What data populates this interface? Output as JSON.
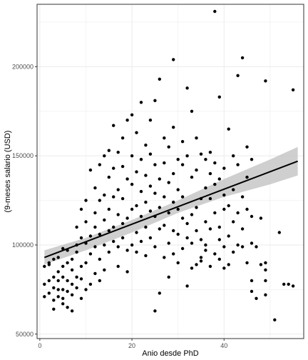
{
  "chart_data": {
    "type": "scatter",
    "title": "",
    "xlabel": "Anio desde PhD",
    "ylabel": "(9-meses salario (USD)",
    "xlim": [
      -0.6,
      57.3
    ],
    "ylim": [
      47500,
      235000
    ],
    "x_ticks": [
      0,
      20,
      40
    ],
    "x_tick_labels": [
      "0",
      "20",
      "40"
    ],
    "y_ticks": [
      50000,
      100000,
      150000,
      200000
    ],
    "y_tick_labels": [
      "50000",
      "100000",
      "150000",
      "200000"
    ],
    "grid": true,
    "legend": "none",
    "colors": {
      "points": "#000000",
      "line": "#000000",
      "band": "#bfbfbf",
      "grid": "#ebebeb",
      "border": "#333333"
    },
    "points": [
      [
        1,
        71000
      ],
      [
        1,
        78000
      ],
      [
        1,
        88000
      ],
      [
        2,
        80000
      ],
      [
        2,
        73000
      ],
      [
        2,
        90000
      ],
      [
        2,
        89000
      ],
      [
        3,
        64000
      ],
      [
        3,
        76000
      ],
      [
        3,
        82000
      ],
      [
        3,
        92000
      ],
      [
        3,
        69000
      ],
      [
        4,
        71000
      ],
      [
        4,
        80000
      ],
      [
        4,
        85000
      ],
      [
        4,
        93000
      ],
      [
        4,
        75000
      ],
      [
        5,
        75000
      ],
      [
        5,
        88000
      ],
      [
        5,
        98000
      ],
      [
        5,
        70000
      ],
      [
        5,
        67000
      ],
      [
        5,
        82000
      ],
      [
        6,
        65000
      ],
      [
        6,
        74000
      ],
      [
        6,
        80000
      ],
      [
        6,
        97000
      ],
      [
        6,
        90000
      ],
      [
        7,
        63000
      ],
      [
        7,
        72000
      ],
      [
        7,
        78000
      ],
      [
        7,
        86000
      ],
      [
        7,
        92000
      ],
      [
        8,
        100000
      ],
      [
        8,
        110000
      ],
      [
        8,
        76000
      ],
      [
        8,
        82000
      ],
      [
        8,
        96000
      ],
      [
        9,
        70000
      ],
      [
        9,
        81000
      ],
      [
        9,
        88000
      ],
      [
        9,
        104000
      ],
      [
        9,
        120000
      ],
      [
        10,
        90000
      ],
      [
        10,
        101000
      ],
      [
        10,
        113000
      ],
      [
        10,
        125000
      ],
      [
        10,
        75000
      ],
      [
        11,
        78000
      ],
      [
        11,
        95000
      ],
      [
        11,
        105000
      ],
      [
        11,
        142000
      ],
      [
        12,
        84000
      ],
      [
        12,
        99000
      ],
      [
        12,
        110000
      ],
      [
        12,
        118000
      ],
      [
        12,
        132000
      ],
      [
        13,
        80000
      ],
      [
        13,
        92000
      ],
      [
        13,
        106000
      ],
      [
        13,
        125000
      ],
      [
        13,
        145000
      ],
      [
        14,
        86000
      ],
      [
        14,
        100000
      ],
      [
        14,
        114000
      ],
      [
        14,
        128000
      ],
      [
        14,
        150000
      ],
      [
        15,
        96000
      ],
      [
        15,
        108000
      ],
      [
        15,
        120000
      ],
      [
        15,
        138000
      ],
      [
        15,
        153000
      ],
      [
        16,
        110000
      ],
      [
        16,
        102000
      ],
      [
        16,
        127000
      ],
      [
        16,
        143000
      ],
      [
        16,
        167000
      ],
      [
        17,
        88000
      ],
      [
        17,
        99000
      ],
      [
        17,
        117000
      ],
      [
        17,
        131000
      ],
      [
        17,
        152000
      ],
      [
        18,
        104000
      ],
      [
        18,
        112000
      ],
      [
        18,
        126000
      ],
      [
        18,
        144000
      ],
      [
        18,
        160000
      ],
      [
        19,
        85000
      ],
      [
        19,
        97000
      ],
      [
        19,
        115000
      ],
      [
        19,
        137000
      ],
      [
        19,
        170000
      ],
      [
        20,
        100000
      ],
      [
        20,
        120000
      ],
      [
        20,
        134000
      ],
      [
        20,
        150000
      ],
      [
        20,
        173000
      ],
      [
        21,
        96000
      ],
      [
        21,
        107000
      ],
      [
        21,
        122000
      ],
      [
        21,
        141000
      ],
      [
        21,
        163000
      ],
      [
        22,
        102000
      ],
      [
        22,
        116000
      ],
      [
        22,
        130000
      ],
      [
        22,
        148000
      ],
      [
        22,
        180000
      ],
      [
        23,
        94000
      ],
      [
        23,
        110000
      ],
      [
        23,
        124000
      ],
      [
        23,
        139000
      ],
      [
        23,
        156000
      ],
      [
        24,
        104000
      ],
      [
        24,
        119000
      ],
      [
        24,
        133000
      ],
      [
        24,
        151000
      ],
      [
        24,
        170000
      ],
      [
        25,
        63000
      ],
      [
        25,
        99000
      ],
      [
        25,
        116000
      ],
      [
        25,
        129000
      ],
      [
        25,
        145000
      ],
      [
        25,
        181000
      ],
      [
        26,
        73000
      ],
      [
        26,
        109000
      ],
      [
        26,
        121000
      ],
      [
        26,
        137000
      ],
      [
        26,
        193000
      ],
      [
        27,
        93000
      ],
      [
        27,
        111000
      ],
      [
        27,
        127000
      ],
      [
        27,
        146000
      ],
      [
        27,
        160000
      ],
      [
        28,
        82000
      ],
      [
        28,
        101000
      ],
      [
        28,
        118000
      ],
      [
        28,
        135000
      ],
      [
        28,
        155000
      ],
      [
        29,
        204000
      ],
      [
        29,
        95000
      ],
      [
        29,
        108000
      ],
      [
        29,
        124000
      ],
      [
        29,
        140000
      ],
      [
        29,
        166000
      ],
      [
        30,
        90000
      ],
      [
        30,
        106000
      ],
      [
        30,
        120000
      ],
      [
        30,
        131000
      ],
      [
        30,
        148000
      ],
      [
        31,
        98000
      ],
      [
        31,
        115000
      ],
      [
        31,
        127000
      ],
      [
        31,
        145000
      ],
      [
        31,
        158000
      ],
      [
        32,
        77000
      ],
      [
        32,
        104000
      ],
      [
        32,
        112000
      ],
      [
        32,
        150000
      ],
      [
        32,
        188000
      ],
      [
        33,
        87000
      ],
      [
        33,
        101000
      ],
      [
        33,
        117000
      ],
      [
        33,
        138000
      ],
      [
        33,
        175000
      ],
      [
        34,
        89000
      ],
      [
        34,
        108000
      ],
      [
        34,
        121000
      ],
      [
        34,
        142000
      ],
      [
        34,
        160000
      ],
      [
        35,
        93000
      ],
      [
        35,
        103000
      ],
      [
        35,
        126000
      ],
      [
        35,
        151000
      ],
      [
        35,
        91000
      ],
      [
        36,
        97000
      ],
      [
        36,
        113000
      ],
      [
        36,
        132000
      ],
      [
        36,
        148000
      ],
      [
        36,
        100000
      ],
      [
        37,
        88000
      ],
      [
        37,
        109000
      ],
      [
        37,
        126000
      ],
      [
        37,
        140000
      ],
      [
        37,
        152000
      ],
      [
        38,
        231000
      ],
      [
        38,
        95000
      ],
      [
        38,
        118000
      ],
      [
        38,
        134000
      ],
      [
        38,
        146000
      ],
      [
        39,
        183000
      ],
      [
        39,
        103000
      ],
      [
        39,
        110000
      ],
      [
        39,
        137000
      ],
      [
        39,
        92000
      ],
      [
        40,
        128000
      ],
      [
        40,
        99000
      ],
      [
        40,
        87000
      ],
      [
        40,
        120000
      ],
      [
        40,
        143000
      ],
      [
        41,
        89000
      ],
      [
        41,
        105000
      ],
      [
        41,
        122000
      ],
      [
        41,
        165000
      ],
      [
        42,
        96000
      ],
      [
        42,
        113000
      ],
      [
        42,
        131000
      ],
      [
        42,
        150000
      ],
      [
        43,
        195000
      ],
      [
        43,
        100000
      ],
      [
        43,
        118000
      ],
      [
        43,
        145000
      ],
      [
        44,
        205000
      ],
      [
        44,
        109000
      ],
      [
        44,
        127000
      ],
      [
        44,
        99000
      ],
      [
        45,
        90000
      ],
      [
        45,
        120000
      ],
      [
        45,
        138000
      ],
      [
        45,
        155000
      ],
      [
        46,
        80000
      ],
      [
        46,
        101000
      ],
      [
        46,
        116000
      ],
      [
        46,
        148000
      ],
      [
        46,
        74000
      ],
      [
        47,
        70000
      ],
      [
        47,
        99000
      ],
      [
        48,
        89000
      ],
      [
        48,
        115000
      ],
      [
        49,
        192000
      ],
      [
        49,
        90000
      ],
      [
        49,
        86000
      ],
      [
        49,
        80000
      ],
      [
        49,
        72000
      ],
      [
        51,
        58000
      ],
      [
        52,
        107000
      ],
      [
        53,
        78000
      ],
      [
        54,
        78000
      ],
      [
        55,
        77000
      ],
      [
        55,
        187000
      ]
    ],
    "fit_line": {
      "x": [
        1,
        56
      ],
      "y": [
        93000,
        147000
      ]
    },
    "confidence_band": {
      "x": [
        1,
        10,
        20,
        30,
        40,
        50,
        56
      ],
      "upper": [
        97000,
        104000,
        114000,
        125000,
        137000,
        148000,
        155000
      ],
      "lower": [
        89000,
        97000,
        107000,
        118000,
        127000,
        134000,
        139000
      ]
    }
  }
}
